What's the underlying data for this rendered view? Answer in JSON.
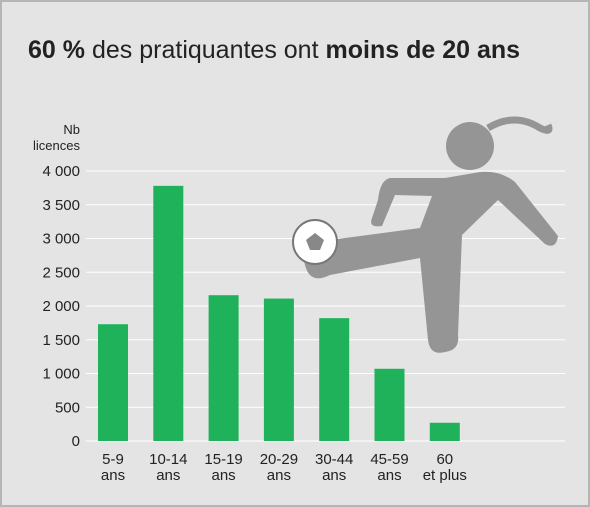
{
  "chart_data": {
    "type": "bar",
    "title": [
      "60 %",
      "des pratiquantes ont",
      "moins de 20 ans"
    ],
    "ylabel": [
      "Nb",
      "licences"
    ],
    "categories": [
      [
        "5-9",
        "ans"
      ],
      [
        "10-14",
        "ans"
      ],
      [
        "15-19",
        "ans"
      ],
      [
        "20-29",
        "ans"
      ],
      [
        "30-44",
        "ans"
      ],
      [
        "45-59",
        "ans"
      ],
      [
        "60",
        "et plus"
      ]
    ],
    "values": [
      1730,
      3780,
      2160,
      2110,
      1820,
      1070,
      270
    ],
    "color": "#1fb25a",
    "ylim": [
      0,
      4000
    ],
    "yticks": [
      0,
      500,
      {
        "value": 1000,
        "label": "1 000"
      },
      {
        "value": 1500,
        "label": "1 500"
      },
      {
        "value": 2000,
        "label": "2 000"
      },
      {
        "value": 2500,
        "label": "2 500"
      },
      {
        "value": 3000,
        "label": "3 000"
      },
      {
        "value": 3500,
        "label": "3 500"
      },
      {
        "value": 4000,
        "label": "4 000"
      }
    ],
    "grid": true
  }
}
